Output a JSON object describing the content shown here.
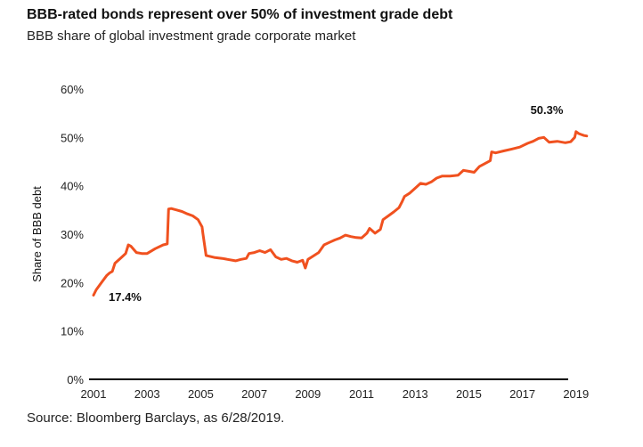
{
  "title": "BBB-rated bonds represent over 50% of investment grade debt",
  "subtitle": "BBB share of global investment grade corporate market",
  "source": "Source: Bloomberg Barclays, as 6/28/2019.",
  "colors": {
    "line": "#f0511f",
    "axis": "#000000",
    "text": "#222222"
  },
  "chart_data": {
    "type": "line",
    "title": "BBB-rated bonds represent over 50% of investment grade debt",
    "subtitle": "BBB share of global investment grade corporate market",
    "xlabel": "",
    "ylabel": "Share of BBB debt",
    "xlim": [
      2001,
      2019.5
    ],
    "ylim": [
      0,
      60
    ],
    "x_ticks": [
      "2001",
      "2003",
      "2005",
      "2007",
      "2009",
      "2011",
      "2013",
      "2015",
      "2017",
      "2019"
    ],
    "y_ticks": [
      "0%",
      "10%",
      "20%",
      "30%",
      "40%",
      "50%",
      "60%"
    ],
    "grid": false,
    "legend": "none",
    "annotations": [
      {
        "text": "17.4%",
        "x": 2001.0,
        "y": 17.4
      },
      {
        "text": "50.3%",
        "x": 2019.4,
        "y": 50.3
      }
    ],
    "series": [
      {
        "x": [
          2001.0,
          2001.1,
          2001.3,
          2001.5,
          2001.6,
          2001.7,
          2001.8,
          2002.0,
          2002.1,
          2002.2,
          2002.3,
          2002.4,
          2002.6,
          2002.8,
          2003.0,
          2003.3,
          2003.6,
          2003.75,
          2003.8,
          2003.9,
          2004.1,
          2004.3,
          2004.5,
          2004.7,
          2004.9,
          2005.05,
          2005.08,
          2005.2,
          2005.5,
          2005.8,
          2006.0,
          2006.3,
          2006.5,
          2006.7,
          2006.8,
          2007.0,
          2007.2,
          2007.4,
          2007.6,
          2007.8,
          2008.0,
          2008.2,
          2008.4,
          2008.6,
          2008.8,
          2008.9,
          2009.0,
          2009.2,
          2009.4,
          2009.5,
          2009.6,
          2009.8,
          2010.0,
          2010.2,
          2010.4,
          2010.6,
          2010.8,
          2011.0,
          2011.2,
          2011.3,
          2011.5,
          2011.7,
          2011.8,
          2012.0,
          2012.2,
          2012.4,
          2012.5,
          2012.6,
          2012.8,
          2013.0,
          2013.2,
          2013.4,
          2013.6,
          2013.8,
          2014.0,
          2014.3,
          2014.6,
          2014.8,
          2015.0,
          2015.2,
          2015.4,
          2015.6,
          2015.8,
          2015.85,
          2016.0,
          2016.3,
          2016.6,
          2016.9,
          2017.2,
          2017.4,
          2017.6,
          2017.8,
          2018.0,
          2018.3,
          2018.6,
          2018.8,
          2018.95,
          2019.0,
          2019.1,
          2019.2,
          2019.3,
          2019.4
        ],
        "values": [
          17.4,
          18.5,
          20.0,
          21.5,
          22.0,
          22.3,
          24.0,
          25.0,
          25.5,
          26.0,
          27.8,
          27.5,
          26.2,
          26.0,
          26.0,
          27.0,
          27.8,
          28.0,
          35.2,
          35.3,
          35.0,
          34.7,
          34.2,
          33.8,
          33.0,
          31.5,
          30.2,
          25.6,
          25.2,
          25.0,
          24.8,
          24.5,
          24.8,
          25.0,
          26.0,
          26.2,
          26.6,
          26.2,
          26.8,
          25.3,
          24.8,
          25.0,
          24.5,
          24.2,
          24.6,
          23.0,
          24.8,
          25.5,
          26.2,
          27.0,
          27.8,
          28.3,
          28.8,
          29.2,
          29.8,
          29.5,
          29.3,
          29.2,
          30.2,
          31.2,
          30.2,
          31.0,
          33.0,
          33.8,
          34.6,
          35.5,
          36.6,
          37.8,
          38.5,
          39.5,
          40.5,
          40.3,
          40.8,
          41.6,
          42.0,
          42.0,
          42.2,
          43.2,
          43.0,
          42.8,
          44.0,
          44.6,
          45.2,
          47.0,
          46.8,
          47.2,
          47.6,
          48.0,
          48.8,
          49.2,
          49.8,
          50.0,
          49.0,
          49.2,
          48.9,
          49.1,
          50.0,
          51.2,
          50.8,
          50.6,
          50.4,
          50.3
        ]
      }
    ]
  }
}
